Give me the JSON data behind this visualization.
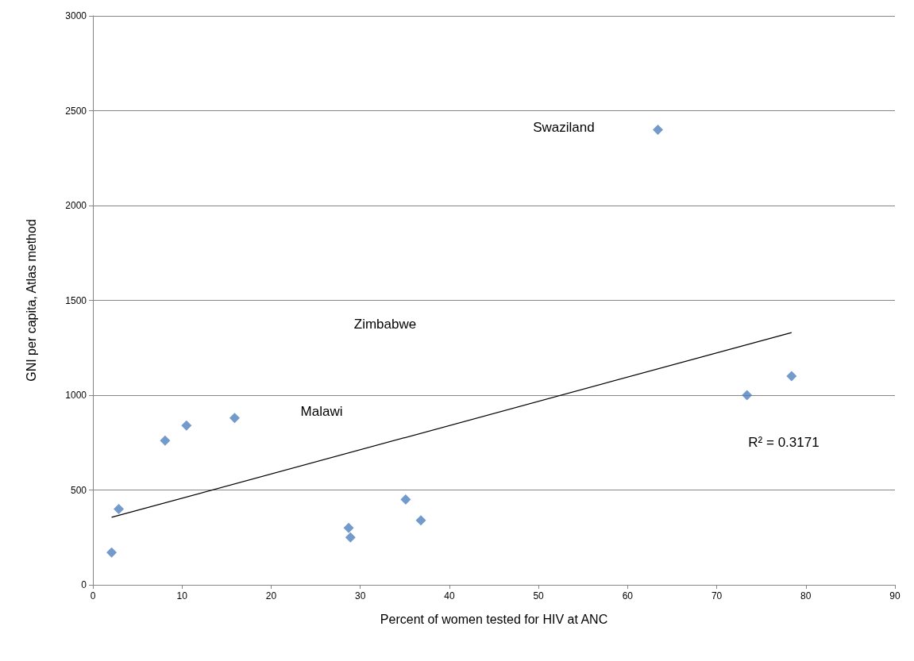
{
  "chart_data": {
    "type": "scatter",
    "xlabel": "Percent of women tested for HIV at ANC",
    "ylabel": "GNI per capita, Atlas method",
    "xlim": [
      0,
      90
    ],
    "xticks": [
      0,
      10,
      20,
      30,
      40,
      50,
      60,
      70,
      80,
      90
    ],
    "ylim": [
      0,
      3000
    ],
    "yticks": [
      0,
      500,
      1000,
      1500,
      2000,
      2500,
      3000
    ],
    "grid": "y",
    "marker": "diamond",
    "series": [
      {
        "color": "#4f81bd",
        "x": [
          2.1,
          2.9,
          8.1,
          10.5,
          15.9,
          28.7,
          28.9,
          35.1,
          36.8,
          63.4,
          73.4,
          78.4
        ],
        "values": [
          170,
          400,
          760,
          840,
          880,
          300,
          250,
          450,
          340,
          2400,
          1000,
          1100
        ]
      },
      {
        "type": "line",
        "color": "#000000",
        "marker": "none",
        "x": [
          2.1,
          78.4
        ],
        "values": [
          356,
          1330
        ]
      }
    ],
    "annotations": [
      "Swaziland",
      "Zimbabwe",
      "Malawi",
      "R² = 0.3171"
    ]
  }
}
